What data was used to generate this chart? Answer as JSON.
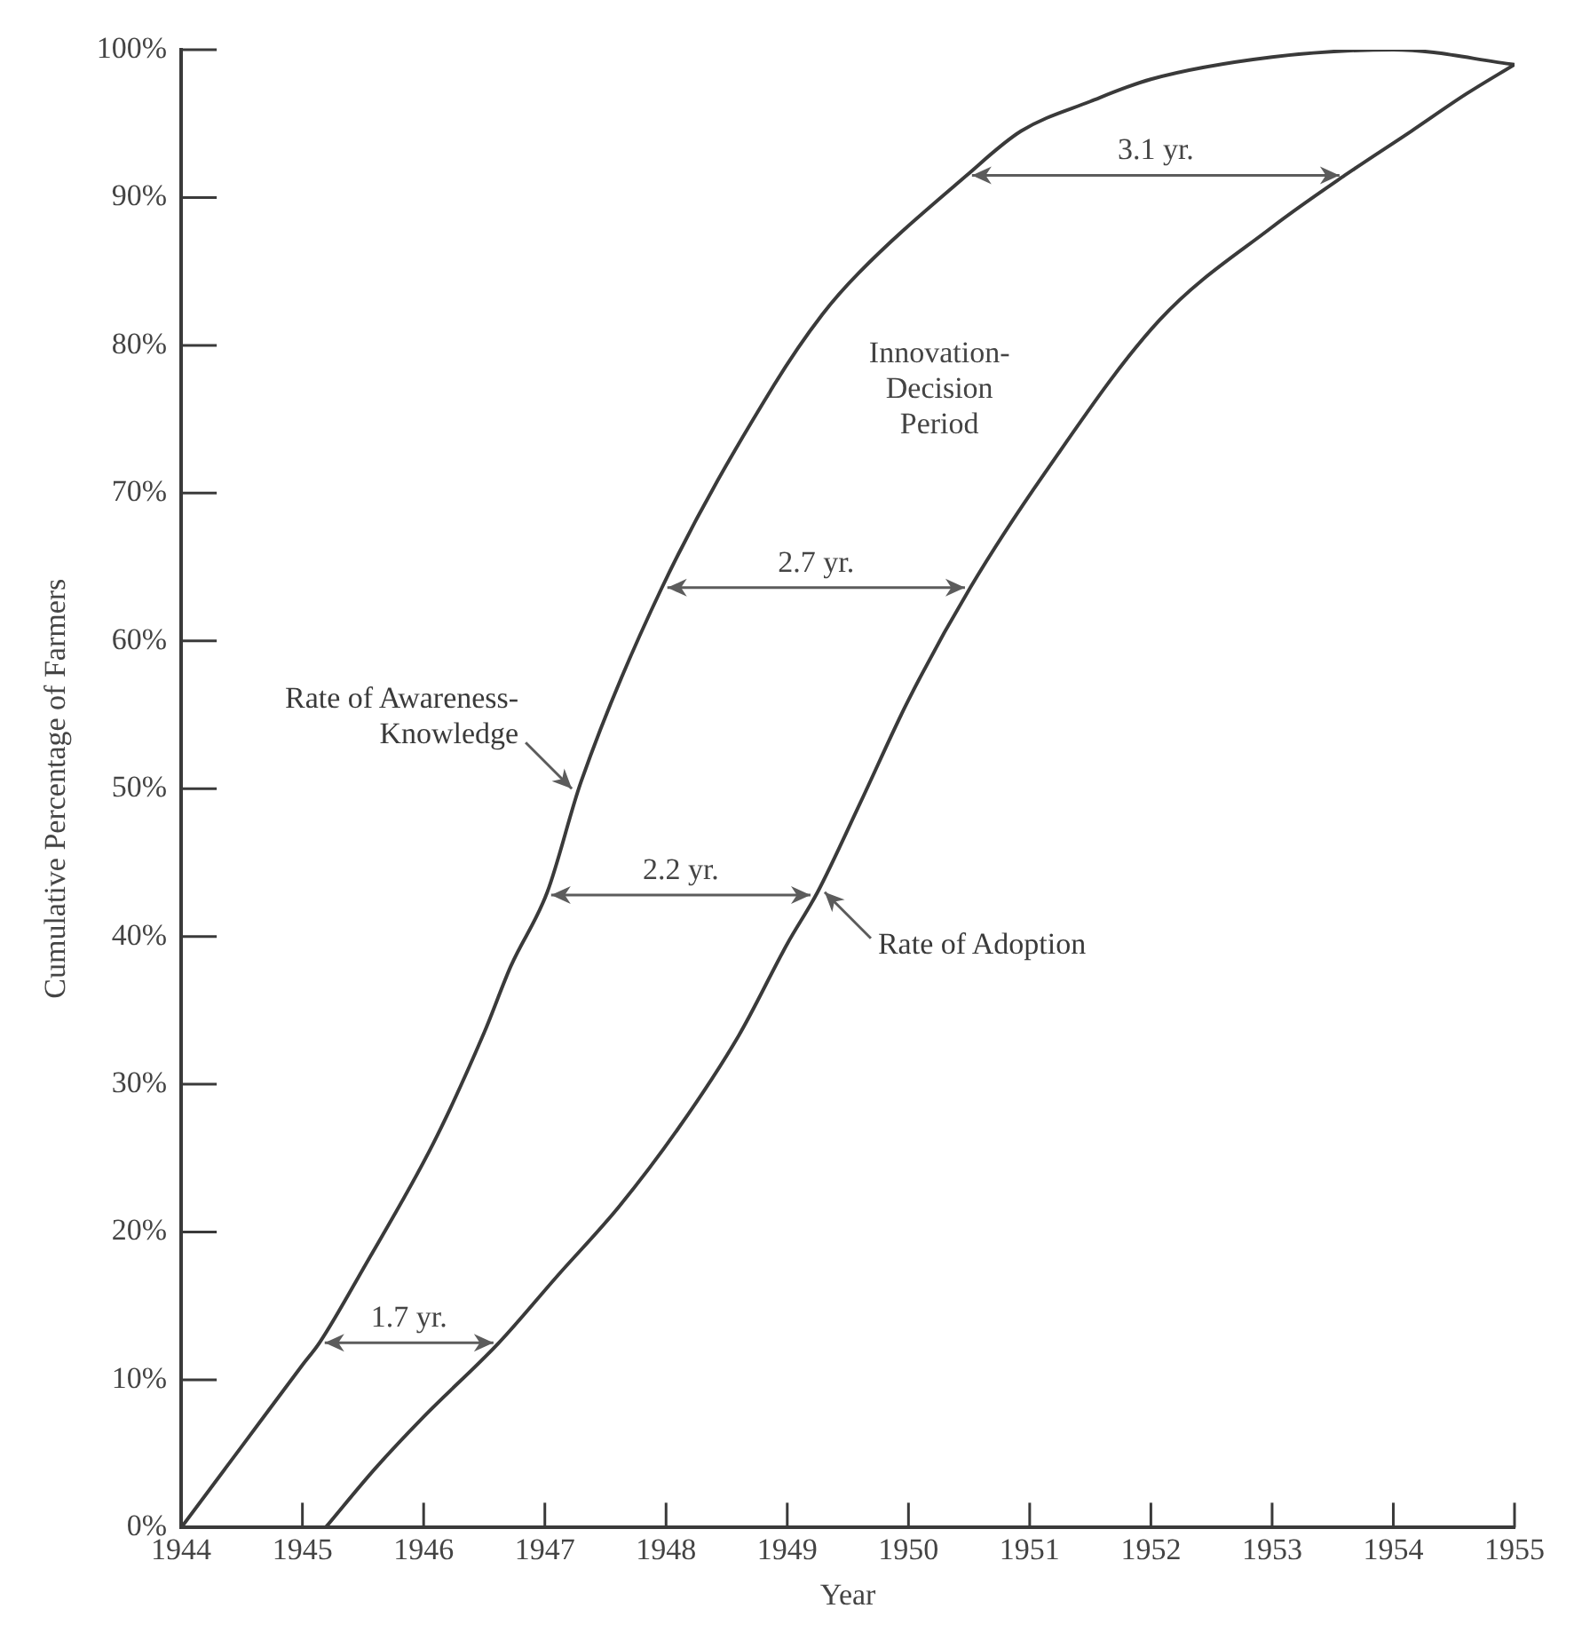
{
  "chart_data": {
    "type": "line",
    "xlabel": "Year",
    "ylabel": "Cumulative Percentage of Farmers",
    "xlim": [
      1944,
      1955
    ],
    "xticks": [
      1944,
      1945,
      1946,
      1947,
      1948,
      1949,
      1950,
      1951,
      1952,
      1953,
      1954,
      1955
    ],
    "ylim": [
      0,
      100
    ],
    "yticks": [
      {
        "value": 0,
        "label": "0%"
      },
      {
        "value": 10,
        "label": "10%"
      },
      {
        "value": 20,
        "label": "20%"
      },
      {
        "value": 30,
        "label": "30%"
      },
      {
        "value": 40,
        "label": "40%"
      },
      {
        "value": 50,
        "label": "50%"
      },
      {
        "value": 60,
        "label": "60%"
      },
      {
        "value": 70,
        "label": "70%"
      },
      {
        "value": 80,
        "label": "80%"
      },
      {
        "value": 90,
        "label": "90%"
      },
      {
        "value": 100,
        "label": "100%"
      }
    ],
    "grid": false,
    "legend": false,
    "marker": "none",
    "line_style": "solid",
    "series": [
      {
        "name": "Rate of Awareness-Knowledge",
        "color": "#3a3a3a",
        "x": [
          1944,
          1944.5,
          1945,
          1945.14,
          1945.5,
          1946.08,
          1946.5,
          1946.72,
          1947.02,
          1947.3,
          1947.96,
          1948.89,
          1949.29,
          1949.59,
          1950.48,
          1950.93,
          1951.5,
          1952,
          1953,
          1954,
          1955
        ],
        "values": [
          0,
          5.5,
          11,
          12.5,
          17.5,
          26,
          33.5,
          38,
          43,
          50.5,
          63.5,
          77.3,
          82.1,
          84.9,
          91.5,
          94.5,
          96.5,
          98,
          99.5,
          100,
          99
        ]
      },
      {
        "name": "Rate of Adoption",
        "color": "#3a3a3a",
        "x": [
          1945.19,
          1945.6,
          1946,
          1946.62,
          1947.1,
          1947.61,
          1948.1,
          1948.6,
          1949,
          1949.25,
          1949.6,
          1950,
          1950.51,
          1951.12,
          1952.07,
          1953,
          1953.6,
          1954.15,
          1954.6,
          1955
        ],
        "values": [
          0,
          4,
          7.5,
          12.5,
          17,
          21.7,
          27,
          33.3,
          39.5,
          43,
          49,
          56,
          63.6,
          71.3,
          81.7,
          88,
          91.5,
          94.5,
          97,
          99
        ]
      }
    ],
    "annotations": [
      {
        "text": "1.7 yr.",
        "x": 1945.14,
        "y": 12.5
      },
      "2.2 yr.",
      "2.7 yr.",
      "3.1 yr.",
      "Innovation-Decision Period"
    ]
  }
}
